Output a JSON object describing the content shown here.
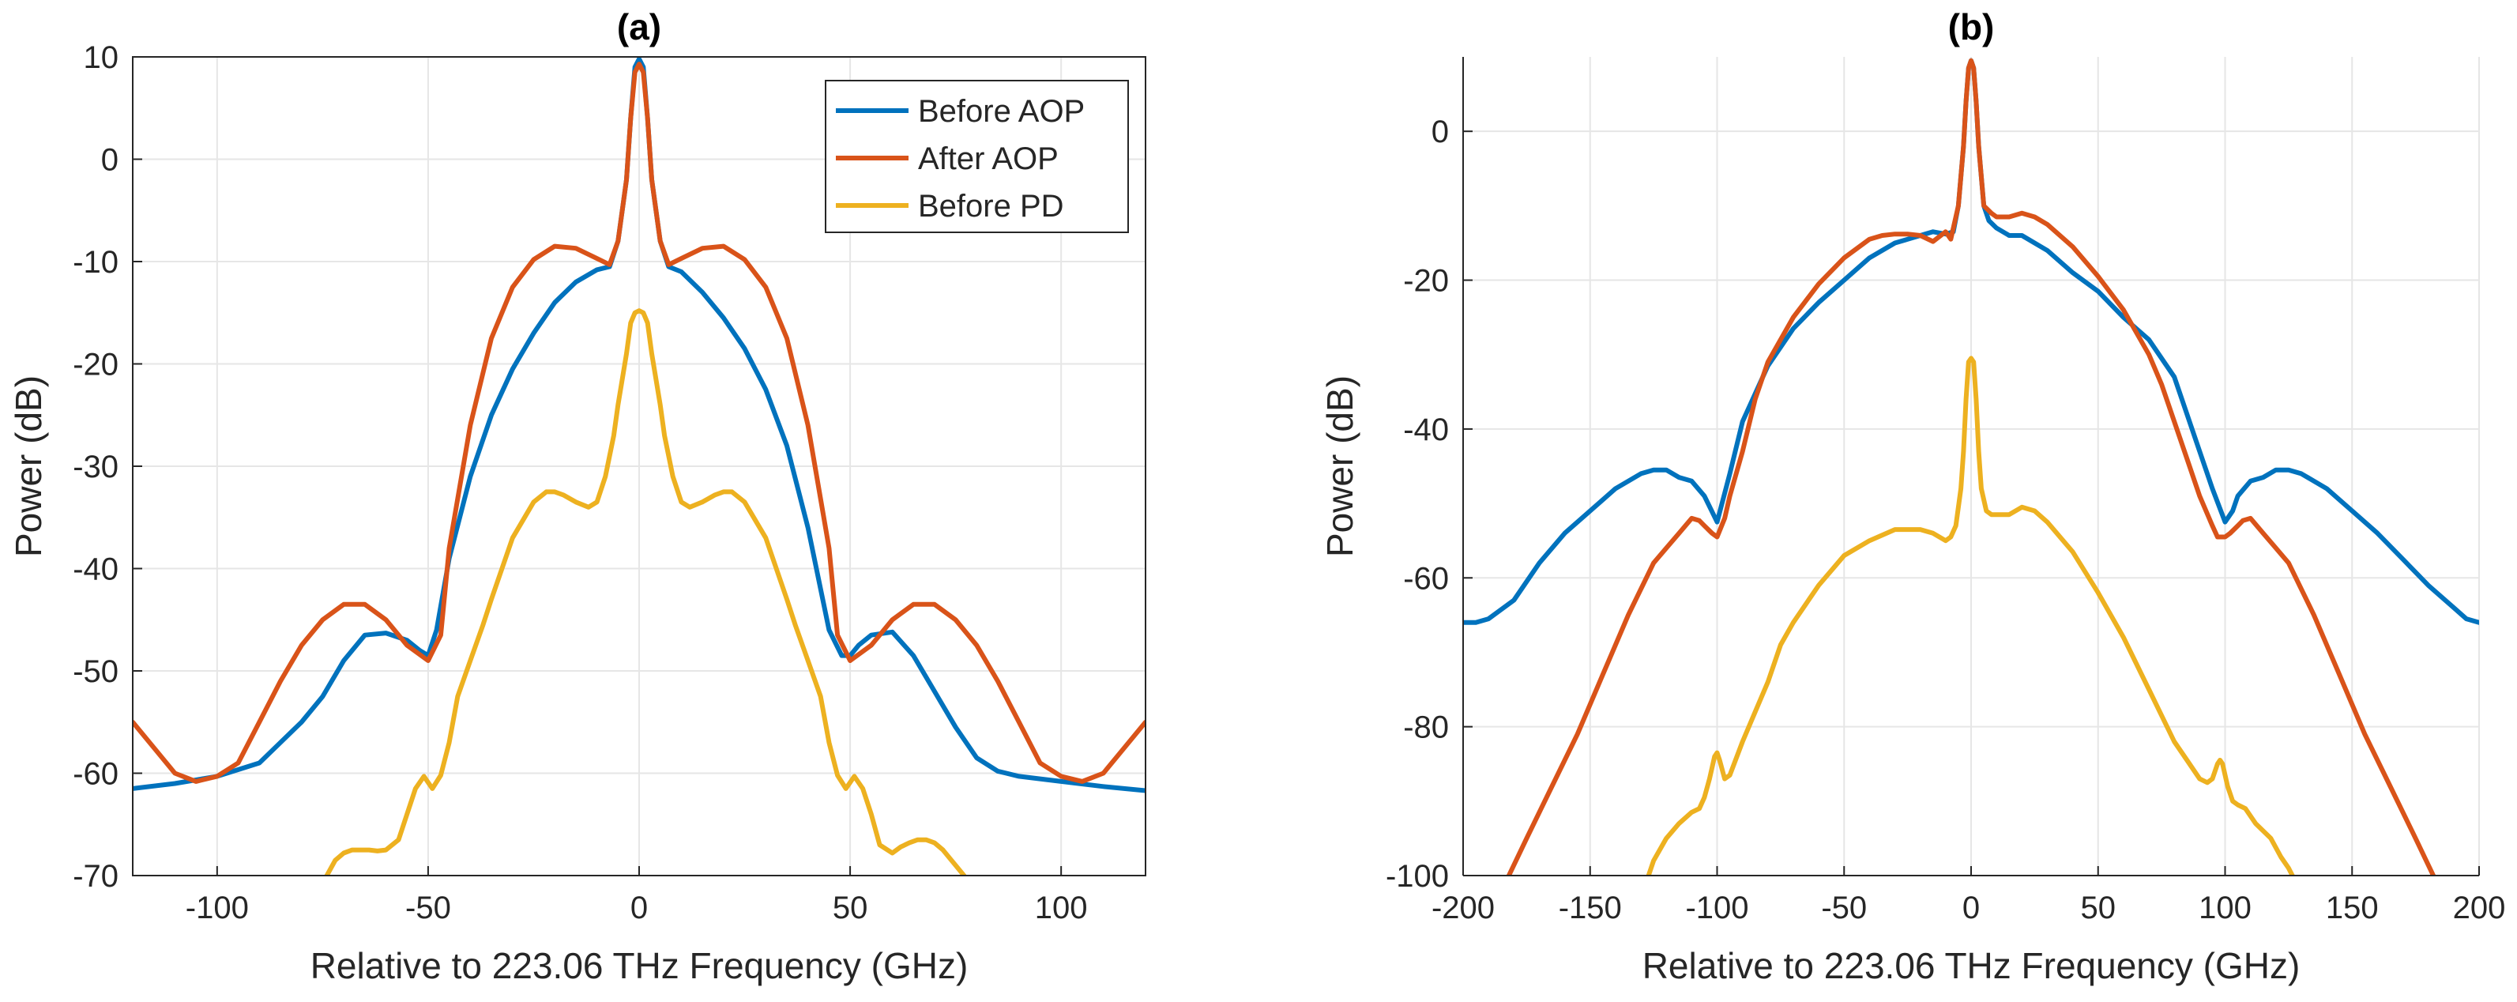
{
  "chart_data": [
    {
      "type": "line",
      "title": "(a)",
      "xlabel": "Relative to 223.06 THz Frequency (GHz)",
      "ylabel": "Power (dB)",
      "xlim": [
        -120,
        120
      ],
      "ylim": [
        -70,
        10
      ],
      "xticks": [
        -100,
        -50,
        0,
        50,
        100
      ],
      "yticks": [
        -70,
        -60,
        -50,
        -40,
        -30,
        -20,
        -10,
        0,
        10
      ],
      "grid": true,
      "legend_position": "top-right",
      "series": [
        {
          "name": "Before AOP",
          "color": "#0072BD",
          "x": [
            -120,
            -110,
            -100,
            -90,
            -85,
            -80,
            -75,
            -70,
            -65,
            -60,
            -55,
            -52,
            -50,
            -48,
            -45,
            -40,
            -35,
            -30,
            -25,
            -20,
            -15,
            -10,
            -7,
            -5,
            -3,
            -2,
            -1,
            0,
            1,
            2,
            3,
            5,
            7,
            10,
            15,
            20,
            25,
            30,
            35,
            40,
            45,
            48,
            50,
            52,
            55,
            60,
            65,
            70,
            75,
            80,
            85,
            90,
            100,
            110,
            120
          ],
          "y": [
            -61.5,
            -61,
            -60.3,
            -59,
            -57,
            -55,
            -52.5,
            -49,
            -46.5,
            -46.3,
            -47,
            -48,
            -48.5,
            -46,
            -39,
            -31,
            -25,
            -20.5,
            -17,
            -14,
            -12,
            -10.8,
            -10.5,
            -8,
            -2,
            4,
            9,
            9.8,
            9,
            4,
            -2,
            -8,
            -10.5,
            -11,
            -13,
            -15.5,
            -18.5,
            -22.5,
            -28,
            -36,
            -46,
            -48.5,
            -48.5,
            -47.5,
            -46.5,
            -46.2,
            -48.5,
            -52,
            -55.5,
            -58.5,
            -59.8,
            -60.3,
            -60.8,
            -61.3,
            -61.7
          ]
        },
        {
          "name": "After AOP",
          "color": "#D95319",
          "x": [
            -120,
            -115,
            -110,
            -105,
            -100,
            -95,
            -90,
            -85,
            -80,
            -75,
            -70,
            -65,
            -60,
            -55,
            -50,
            -47,
            -45,
            -40,
            -35,
            -30,
            -25,
            -20,
            -15,
            -10,
            -7,
            -5,
            -3,
            -2,
            -1,
            0,
            1,
            2,
            3,
            5,
            7,
            10,
            15,
            20,
            25,
            30,
            35,
            40,
            45,
            47,
            50,
            55,
            60,
            65,
            70,
            75,
            80,
            85,
            90,
            95,
            100,
            105,
            110,
            115,
            120
          ],
          "y": [
            -55,
            -57.5,
            -60,
            -60.8,
            -60.3,
            -59,
            -55,
            -51,
            -47.5,
            -45,
            -43.5,
            -43.5,
            -45,
            -47.5,
            -49,
            -46.5,
            -38,
            -26,
            -17.5,
            -12.5,
            -9.8,
            -8.5,
            -8.7,
            -9.7,
            -10.3,
            -8,
            -2,
            4,
            8.5,
            9.3,
            8.5,
            4,
            -2,
            -8,
            -10.3,
            -9.7,
            -8.7,
            -8.5,
            -9.8,
            -12.5,
            -17.5,
            -26,
            -38,
            -46.5,
            -49,
            -47.5,
            -45,
            -43.5,
            -43.5,
            -45,
            -47.5,
            -51,
            -55,
            -59,
            -60.3,
            -60.8,
            -60,
            -57.5,
            -55
          ]
        },
        {
          "name": "Before PD",
          "color": "#EDB120",
          "x": [
            -74,
            -72,
            -70,
            -68,
            -66,
            -64,
            -62,
            -60,
            -57,
            -55,
            -53,
            -51,
            -49,
            -47,
            -45,
            -43,
            -40,
            -37,
            -35,
            -30,
            -25,
            -22,
            -20,
            -18,
            -15,
            -12,
            -10,
            -8,
            -6,
            -5,
            -3,
            -2,
            -1,
            0,
            1,
            2,
            3,
            5,
            6,
            8,
            10,
            12,
            15,
            18,
            20,
            22,
            25,
            30,
            35,
            37,
            40,
            43,
            45,
            47,
            49,
            51,
            53,
            55,
            57,
            60,
            62,
            64,
            66,
            68,
            70,
            72,
            74,
            77
          ],
          "y": [
            -70,
            -68.5,
            -67.8,
            -67.5,
            -67.5,
            -67.5,
            -67.6,
            -67.5,
            -66.5,
            -64,
            -61.5,
            -60.3,
            -61.5,
            -60.2,
            -57,
            -52.5,
            -49,
            -45.5,
            -43,
            -37,
            -33.5,
            -32.5,
            -32.5,
            -32.8,
            -33.5,
            -34,
            -33.5,
            -31,
            -27,
            -24,
            -19,
            -16,
            -15,
            -14.8,
            -15,
            -16,
            -19,
            -24,
            -27,
            -31,
            -33.5,
            -34,
            -33.5,
            -32.8,
            -32.5,
            -32.5,
            -33.5,
            -37,
            -43,
            -45.5,
            -49,
            -52.5,
            -57,
            -60.2,
            -61.5,
            -60.3,
            -61.5,
            -64,
            -67,
            -67.8,
            -67.2,
            -66.8,
            -66.5,
            -66.5,
            -66.8,
            -67.5,
            -68.5,
            -70
          ]
        }
      ]
    },
    {
      "type": "line",
      "title": "(b)",
      "xlabel": "Relative to 223.06 THz Frequency (GHz)",
      "ylabel": "Power (dB)",
      "xlim": [
        -200,
        200
      ],
      "ylim": [
        -100,
        10
      ],
      "xticks": [
        -200,
        -150,
        -100,
        -50,
        0,
        50,
        100,
        150,
        200
      ],
      "yticks": [
        -100,
        -80,
        -60,
        -40,
        -20,
        0
      ],
      "grid": true,
      "series": [
        {
          "name": "Before AOP",
          "color": "#0072BD",
          "x": [
            -200,
            -195,
            -190,
            -180,
            -170,
            -160,
            -150,
            -140,
            -130,
            -125,
            -120,
            -115,
            -110,
            -105,
            -100,
            -95,
            -90,
            -80,
            -70,
            -60,
            -50,
            -40,
            -30,
            -20,
            -15,
            -10,
            -7,
            -5,
            -3,
            -2,
            -1,
            0,
            1,
            2,
            3,
            5,
            7,
            10,
            15,
            20,
            30,
            40,
            50,
            60,
            70,
            80,
            90,
            95,
            100,
            103,
            105,
            110,
            115,
            120,
            125,
            130,
            140,
            150,
            160,
            170,
            180,
            190,
            195,
            200
          ],
          "y": [
            -66,
            -66,
            -65.5,
            -63,
            -58,
            -54,
            -51,
            -48,
            -46,
            -45.5,
            -45.5,
            -46.5,
            -47,
            -49,
            -52.5,
            -46,
            -39,
            -31.5,
            -26.5,
            -23,
            -20,
            -17,
            -15,
            -14,
            -13.5,
            -13.8,
            -13.5,
            -10,
            -2,
            4,
            8.5,
            9.5,
            8.5,
            4,
            -2,
            -10,
            -12,
            -13,
            -14,
            -14,
            -16,
            -19,
            -21.5,
            -25,
            -28,
            -33,
            -43,
            -48,
            -52.5,
            -51,
            -49,
            -47,
            -46.5,
            -45.5,
            -45.5,
            -46,
            -48,
            -51,
            -54,
            -57.5,
            -61,
            -64,
            -65.5,
            -66
          ]
        },
        {
          "name": "After AOP",
          "color": "#D95319",
          "x": [
            -185,
            -182,
            -175,
            -165,
            -155,
            -145,
            -135,
            -125,
            -120,
            -115,
            -110,
            -107,
            -105,
            -102,
            -100,
            -97,
            -95,
            -90,
            -85,
            -80,
            -70,
            -60,
            -50,
            -40,
            -35,
            -30,
            -25,
            -20,
            -15,
            -10,
            -8,
            -5,
            -3,
            -2,
            -1,
            0,
            1,
            2,
            3,
            5,
            8,
            10,
            15,
            20,
            25,
            30,
            40,
            50,
            60,
            70,
            75,
            80,
            85,
            90,
            95,
            97,
            100,
            102,
            105,
            107,
            110,
            115,
            120,
            125,
            135,
            145,
            155,
            165,
            175,
            182,
            185
          ],
          "y": [
            -103,
            -100,
            -95,
            -88,
            -81,
            -73,
            -65,
            -58,
            -56,
            -54,
            -52,
            -52.3,
            -53,
            -54,
            -54.5,
            -52,
            -49,
            -43,
            -36,
            -31,
            -25,
            -20.5,
            -17,
            -14.5,
            -14,
            -13.8,
            -13.8,
            -14,
            -14.8,
            -13.5,
            -14.5,
            -10,
            -2,
            4,
            8.5,
            9.5,
            8.5,
            4,
            -2,
            -10,
            -11,
            -11.5,
            -11.5,
            -11,
            -11.5,
            -12.5,
            -15.5,
            -19.5,
            -24,
            -30,
            -34,
            -39,
            -44,
            -49,
            -53,
            -54.5,
            -54.5,
            -54,
            -53,
            -52.3,
            -52,
            -54,
            -56,
            -58,
            -65,
            -73,
            -81,
            -88,
            -95,
            -100,
            -103
          ]
        },
        {
          "name": "Before PD",
          "color": "#EDB120",
          "x": [
            -128,
            -125,
            -120,
            -115,
            -110,
            -107,
            -105,
            -103,
            -101,
            -100,
            -99,
            -97,
            -95,
            -90,
            -85,
            -80,
            -75,
            -70,
            -60,
            -50,
            -40,
            -30,
            -20,
            -15,
            -10,
            -8,
            -6,
            -4,
            -3,
            -2,
            -1,
            0,
            1,
            2,
            3,
            4,
            6,
            8,
            10,
            15,
            20,
            25,
            30,
            40,
            50,
            60,
            70,
            80,
            85,
            90,
            93,
            95,
            97,
            98,
            99,
            100,
            101,
            103,
            105,
            108,
            112,
            118,
            122,
            125,
            128
          ],
          "y": [
            -101,
            -98,
            -95,
            -93,
            -91.5,
            -91,
            -89.5,
            -87,
            -84,
            -83.5,
            -84.5,
            -87,
            -86.5,
            -82,
            -78,
            -74,
            -69,
            -66,
            -61,
            -57,
            -55,
            -53.5,
            -53.5,
            -54,
            -55,
            -54.5,
            -53,
            -48,
            -43,
            -36,
            -31,
            -30.5,
            -31,
            -36,
            -43,
            -48,
            -51,
            -51.5,
            -51.5,
            -51.5,
            -50.5,
            -51,
            -52.5,
            -56.5,
            -62,
            -68,
            -75,
            -82,
            -84.5,
            -87,
            -87.5,
            -87,
            -85,
            -84.5,
            -85,
            -86.5,
            -88,
            -90,
            -90.5,
            -91,
            -93,
            -95,
            -97.5,
            -99,
            -101
          ]
        }
      ]
    }
  ]
}
